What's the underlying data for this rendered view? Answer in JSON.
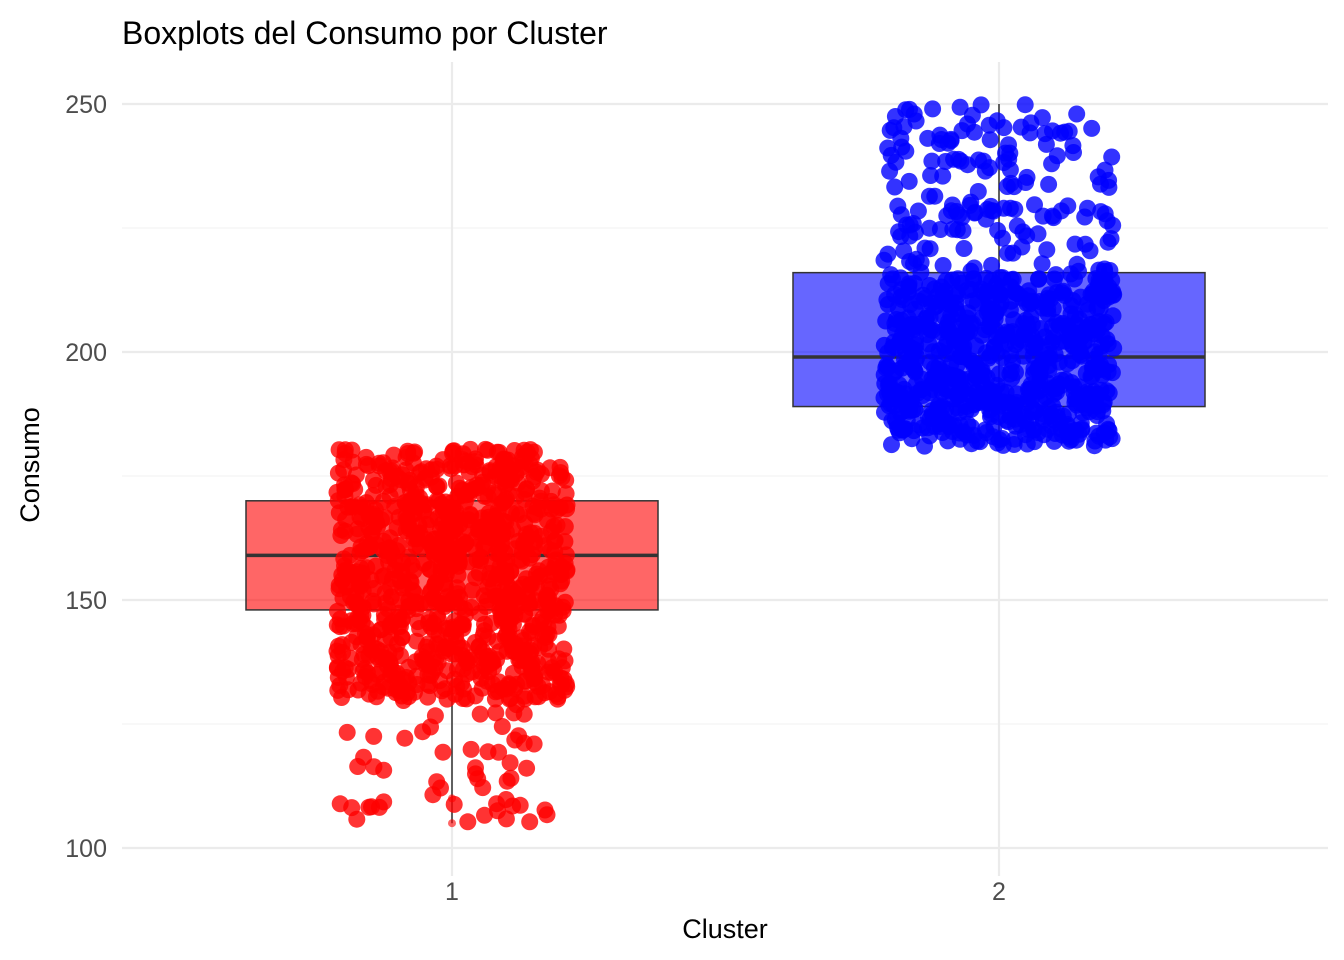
{
  "chart_data": {
    "type": "boxplot",
    "title": "Boxplots del Consumo por Cluster",
    "xlabel": "Cluster",
    "ylabel": "Consumo",
    "categories": [
      "1",
      "2"
    ],
    "ylim": [
      93,
      258
    ],
    "yticks": [
      100,
      150,
      200,
      250
    ],
    "grid": true,
    "legend": "none",
    "boxes": [
      {
        "category": "1",
        "color": "#FF0000",
        "min": 105,
        "q1": 148,
        "median": 159,
        "q3": 170,
        "max": 180.5,
        "outliers": [
          110,
          105
        ],
        "jitter_range": [
          105,
          180.5
        ],
        "dense_range": [
          130,
          180.5
        ]
      },
      {
        "category": "2",
        "color": "#0000FF",
        "min": 181,
        "q1": 189,
        "median": 199,
        "q3": 216,
        "max": 250,
        "outliers": [],
        "jitter_range": [
          181,
          250
        ],
        "dense_range": [
          181,
          215
        ]
      }
    ]
  }
}
